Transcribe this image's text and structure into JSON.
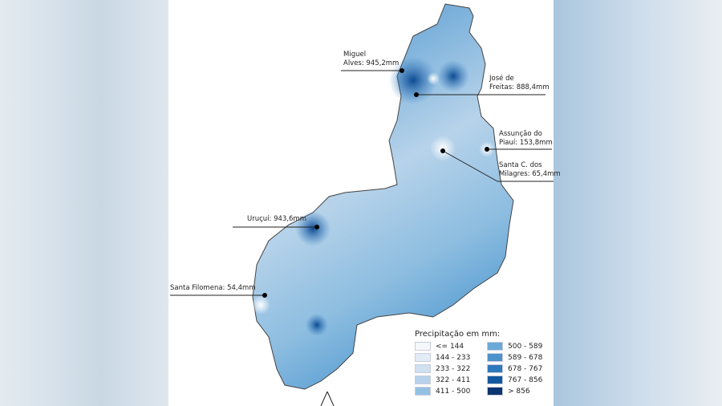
{
  "labels": [
    {
      "text1": "Miguel",
      "text2": "Alves: 945,2mm"
    },
    {
      "text1": "José de",
      "text2": "Freitas: 888,4mm"
    },
    {
      "text1": "Assunção do",
      "text2": "Piauí: 153,8mm"
    },
    {
      "text1": "Santa C. dos",
      "text2": "Milagres: 65,4mm"
    },
    {
      "text1": "Uruçuí: 943,6mm"
    },
    {
      "text1": "Santa Filomena: 54,4mm"
    }
  ],
  "legend": {
    "title": "Precipitação em mm:",
    "items": [
      {
        "label": "<= 144",
        "color": "#f4f7fc"
      },
      {
        "label": "144 - 233",
        "color": "#e2ecf7"
      },
      {
        "label": "233 - 322",
        "color": "#cfe0f1"
      },
      {
        "label": "322 - 411",
        "color": "#b5d2ea"
      },
      {
        "label": "411 - 500",
        "color": "#94c1e2"
      },
      {
        "label": "500 - 589",
        "color": "#6aaad8"
      },
      {
        "label": "589 - 678",
        "color": "#4c93cc"
      },
      {
        "label": "678 - 767",
        "color": "#2f79bd"
      },
      {
        "label": "767 - 856",
        "color": "#13589f"
      },
      {
        "label": "> 856",
        "color": "#0a3570"
      }
    ]
  }
}
